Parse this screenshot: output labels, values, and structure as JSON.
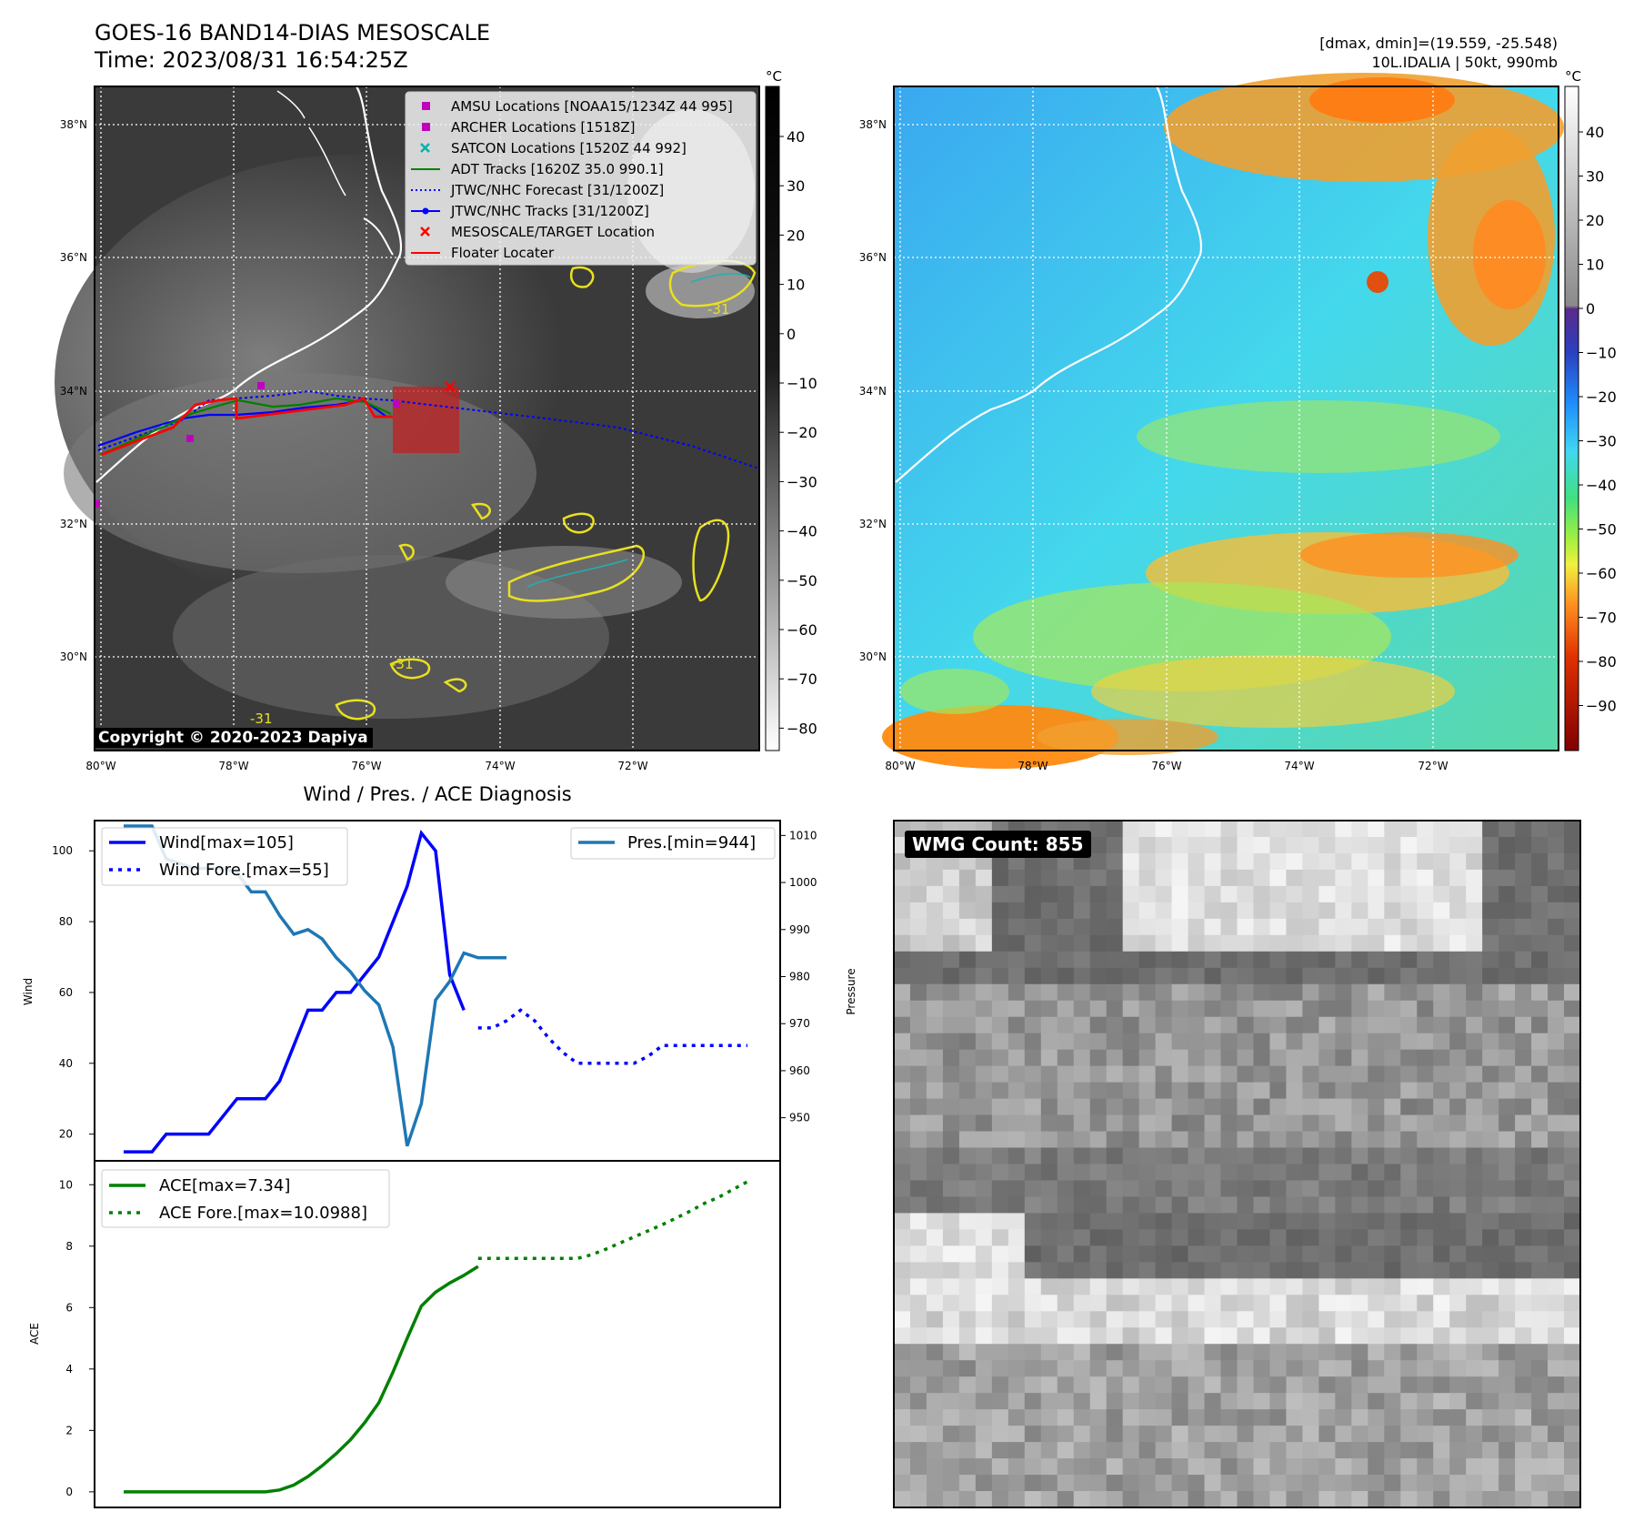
{
  "header": {
    "title": "GOES-16 BAND14-DIAS MESOSCALE",
    "time": "Time: 2023/08/31 16:54:25Z",
    "dmax_dmin": "[dmax, dmin]=(19.559, -25.548)",
    "storm_info": "10L.IDALIA | 50kt, 990mb"
  },
  "map": {
    "lat_labels": [
      "38°N",
      "36°N",
      "34°N",
      "32°N",
      "30°N"
    ],
    "lon_labels": [
      "80°W",
      "78°W",
      "76°W",
      "74°W",
      "72°W"
    ],
    "contour_label": "-31",
    "copyright": "Copyright © 2020-2023 Dapiya"
  },
  "legend": [
    {
      "label": "AMSU Locations [NOAA15/1234Z 44 995]",
      "color": "#c000c0",
      "marker": "square"
    },
    {
      "label": "ARCHER Locations [1518Z]",
      "color": "#c000c0",
      "marker": "square"
    },
    {
      "label": "SATCON Locations [1520Z 44 992]",
      "color": "#00b0b0",
      "marker": "x"
    },
    {
      "label": "ADT Tracks [1620Z 35.0 990.1]",
      "color": "#008000",
      "marker": "line"
    },
    {
      "label": "JTWC/NHC Forecast [31/1200Z]",
      "color": "#0000ff",
      "marker": "dotted"
    },
    {
      "label": "JTWC/NHC Tracks [31/1200Z]",
      "color": "#0000ff",
      "marker": "line-dot"
    },
    {
      "label": "MESOSCALE/TARGET Location",
      "color": "#ff0000",
      "marker": "x"
    },
    {
      "label": "Floater Locater",
      "color": "#ff0000",
      "marker": "line"
    }
  ],
  "colorbars": {
    "unit": "°C",
    "gray_ticks": [
      "40",
      "30",
      "20",
      "10",
      "0",
      "−10",
      "−20",
      "−30",
      "−40",
      "−50",
      "−60",
      "−70",
      "−80"
    ],
    "color_ticks": [
      "40",
      "30",
      "20",
      "10",
      "0",
      "−10",
      "−20",
      "−30",
      "−40",
      "−50",
      "−60",
      "−70",
      "−80",
      "−90"
    ]
  },
  "chart_data": [
    {
      "type": "line",
      "title": "Wind / Pres. / ACE Diagnosis",
      "ylabel": "Wind",
      "ylabel_right": "Pressure",
      "ylim": [
        14,
        107
      ],
      "ylim_right": [
        942,
        1012
      ],
      "yticks": [
        20,
        40,
        60,
        80,
        100
      ],
      "yticks_right": [
        950,
        960,
        970,
        980,
        990,
        1000,
        1010
      ],
      "x": [
        0,
        1,
        2,
        3,
        4,
        5,
        6,
        7,
        8,
        9,
        10,
        11,
        12,
        13,
        14,
        15,
        16,
        17,
        18,
        19,
        20,
        21,
        22,
        23,
        24,
        25,
        26,
        27,
        28,
        29,
        30,
        31,
        32,
        33,
        34,
        35,
        36,
        37,
        38,
        39,
        40,
        41,
        42,
        43,
        44
      ],
      "legend_left": [
        "Wind[max=105]",
        "Wind Fore.[max=55]"
      ],
      "legend_right": [
        "Pres.[min=944]"
      ],
      "series": [
        {
          "name": "Wind[max=105]",
          "axis": "left",
          "color": "#0000ff",
          "style": "solid",
          "x": [
            0,
            1,
            2,
            3,
            4,
            5,
            6,
            7,
            8,
            9,
            10,
            11,
            12,
            13,
            14,
            15,
            16,
            17,
            18,
            19,
            20,
            21,
            22,
            23,
            24
          ],
          "values": [
            15,
            15,
            15,
            20,
            20,
            20,
            20,
            25,
            30,
            30,
            30,
            35,
            45,
            55,
            55,
            60,
            60,
            65,
            70,
            80,
            90,
            105,
            100,
            65,
            55
          ]
        },
        {
          "name": "Wind Fore.[max=55]",
          "axis": "left",
          "color": "#0000ff",
          "style": "dotted",
          "x": [
            25,
            26,
            27,
            28,
            29,
            30,
            31,
            32,
            33,
            34,
            35,
            36,
            37,
            38,
            39,
            40,
            41,
            42,
            43,
            44
          ],
          "values": [
            50,
            50,
            52,
            55,
            52,
            47,
            43,
            40,
            40,
            40,
            40,
            40,
            42,
            45,
            45,
            45,
            45,
            45,
            45,
            45
          ]
        },
        {
          "name": "Pres.[min=944]",
          "axis": "right",
          "color": "#1f77b4",
          "style": "solid",
          "x": [
            0,
            1,
            2,
            3,
            4,
            5,
            6,
            7,
            8,
            9,
            10,
            11,
            12,
            13,
            14,
            15,
            16,
            17,
            18,
            19,
            20,
            21,
            22,
            23,
            24,
            25,
            26,
            27
          ],
          "values": [
            1012,
            1012,
            1012,
            1005,
            1004,
            1003,
            1003,
            1003,
            1002,
            998,
            998,
            993,
            989,
            990,
            988,
            984,
            981,
            977,
            974,
            965,
            944,
            953,
            975,
            979,
            985,
            984,
            984,
            984
          ]
        }
      ]
    },
    {
      "type": "line",
      "ylabel": "ACE",
      "ylim": [
        -0.3,
        10.6
      ],
      "yticks": [
        0,
        2,
        4,
        6,
        8,
        10
      ],
      "legend": [
        "ACE[max=7.34]",
        "ACE Fore.[max=10.0988]"
      ],
      "series": [
        {
          "name": "ACE[max=7.34]",
          "color": "#008000",
          "style": "solid",
          "x": [
            0,
            2,
            4,
            6,
            8,
            10,
            11,
            12,
            13,
            14,
            15,
            16,
            17,
            18,
            19,
            20,
            21,
            22,
            23,
            24,
            25
          ],
          "values": [
            0,
            0,
            0,
            0,
            0,
            0,
            0.06,
            0.22,
            0.5,
            0.85,
            1.25,
            1.7,
            2.25,
            2.9,
            3.9,
            5.0,
            6.05,
            6.5,
            6.8,
            7.05,
            7.34
          ]
        },
        {
          "name": "ACE Fore.[max=10.0988]",
          "color": "#008000",
          "style": "dotted",
          "x": [
            25,
            26,
            27,
            28,
            29,
            30,
            31,
            32,
            33,
            34,
            35,
            36,
            37,
            38,
            39,
            40,
            41,
            42,
            43,
            44
          ],
          "values": [
            7.6,
            7.6,
            7.6,
            7.6,
            7.6,
            7.6,
            7.6,
            7.6,
            7.72,
            7.9,
            8.1,
            8.3,
            8.5,
            8.7,
            8.92,
            9.15,
            9.4,
            9.6,
            9.85,
            10.0988
          ]
        }
      ]
    }
  ],
  "wmg": {
    "label": "WMG Count: 855"
  }
}
